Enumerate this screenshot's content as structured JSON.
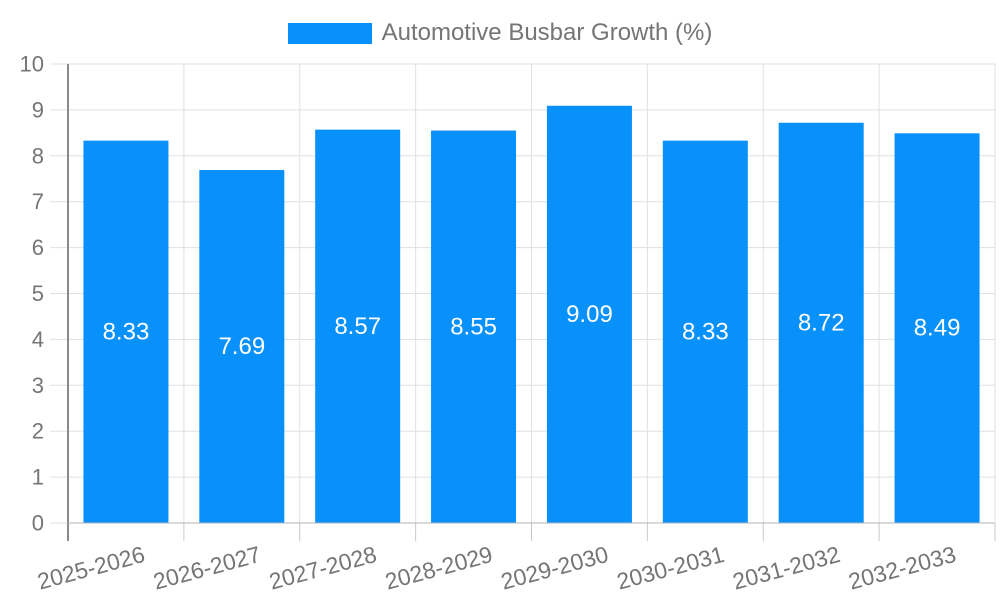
{
  "chart_data": {
    "type": "bar",
    "title": "Automotive Busbar Growth (%)",
    "categories": [
      "2025-2026",
      "2026-2027",
      "2027-2028",
      "2028-2029",
      "2029-2030",
      "2030-2031",
      "2031-2032",
      "2032-2033"
    ],
    "series": [
      {
        "name": "Automotive Busbar Growth (%)",
        "values": [
          8.33,
          7.69,
          8.57,
          8.55,
          9.09,
          8.33,
          8.72,
          8.49
        ]
      }
    ],
    "value_labels": [
      "8.33",
      "7.69",
      "8.57",
      "8.55",
      "9.09",
      "8.33",
      "8.72",
      "8.49"
    ],
    "xlabel": "",
    "ylabel": "",
    "ylim": [
      0,
      10
    ],
    "y_ticks": [
      0,
      1,
      2,
      3,
      4,
      5,
      6,
      7,
      8,
      9,
      10
    ],
    "grid": true,
    "legend_position": "top-center",
    "x_label_rotation_deg": -15,
    "colors": {
      "bar": "#0890FB",
      "grid": "#e0e0e0",
      "y_axis_line": "#8a8a8a",
      "x_axis_line": "#b3b3b3",
      "tick": "#c9c9c9",
      "axis_text": "#757575",
      "value_text": "#ffffff",
      "background": "#ffffff"
    }
  }
}
